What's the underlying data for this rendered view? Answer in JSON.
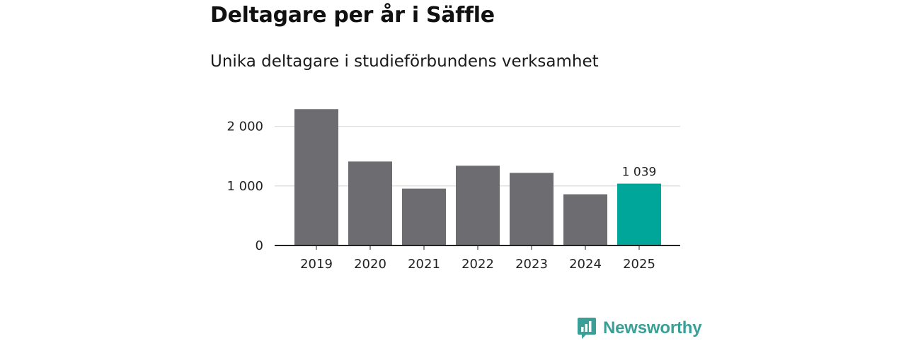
{
  "header": {
    "title": "Deltagare per år i Säffle",
    "subtitle": "Unika deltagare i studieförbundens verksamhet"
  },
  "chart_data": {
    "type": "bar",
    "title": "Deltagare per år i Säffle",
    "subtitle": "Unika deltagare i studieförbundens verksamhet",
    "categories": [
      "2019",
      "2020",
      "2021",
      "2022",
      "2023",
      "2024",
      "2025"
    ],
    "values": [
      2290,
      1410,
      955,
      1340,
      1220,
      860,
      1039
    ],
    "ylim": [
      0,
      2400
    ],
    "yticks": [
      0,
      1000,
      2000
    ],
    "ytick_labels": [
      "0",
      "1 000",
      "2 000"
    ],
    "grid": true,
    "highlight_index": 6,
    "data_labels": [
      {
        "index": 6,
        "text": "1 039"
      }
    ],
    "colors": {
      "bar": "#6d6c71",
      "highlight": "#00a699",
      "grid": "#d9d9d9",
      "axis": "#222222"
    },
    "xlabel": "",
    "ylabel": ""
  },
  "brand": {
    "name": "Newsworthy",
    "icon": "newsworthy-logo-icon",
    "color": "#3a9f97"
  }
}
